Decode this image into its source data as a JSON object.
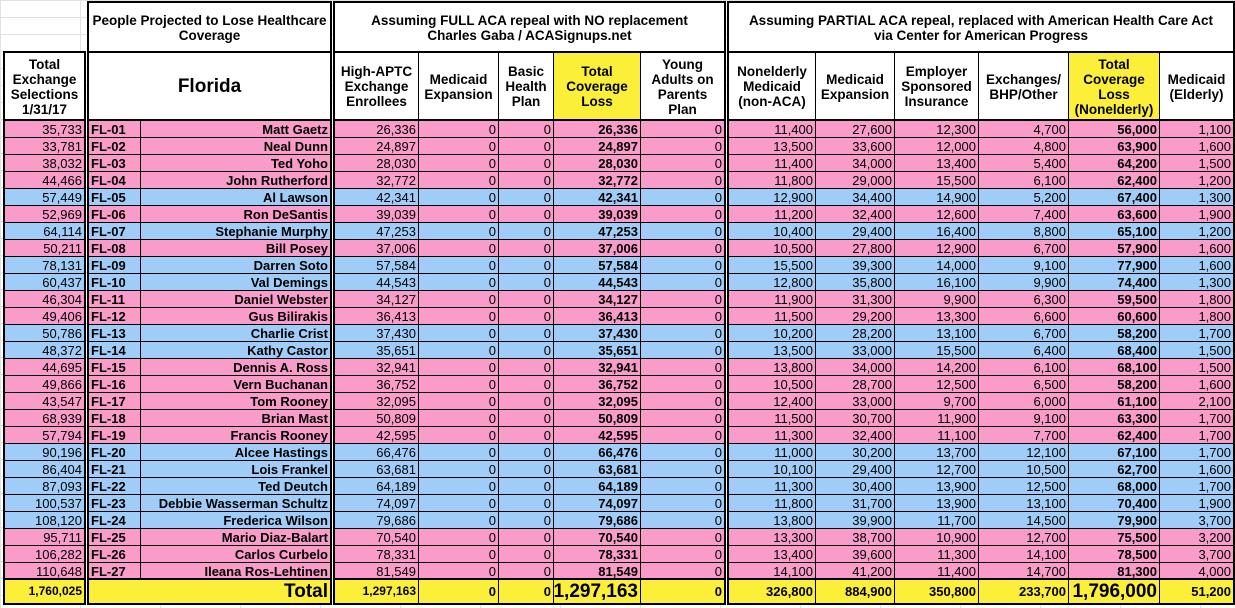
{
  "colors": {
    "republican_row": "#f99cc9",
    "democrat_row": "#9fcdf8",
    "highlight": "#fbef3a",
    "header": "#ffffff"
  },
  "headers": {
    "block_people": "People Projected to Lose Healthcare Coverage",
    "block_full": "Assuming FULL ACA repeal with NO replacement\nCharles Gaba / ACASignups.net",
    "block_partial": "Assuming PARTIAL ACA repeal, replaced with American Health Care Act\nvia Center for American Progress",
    "selections": "Total Exchange Selections 1/31/17",
    "state": "Florida",
    "full_cols": [
      "High-APTC Exchange Enrollees",
      "Medicaid Expansion",
      "Basic Health Plan",
      "Total Coverage Loss",
      "Young Adults on Parents Plan"
    ],
    "partial_cols": [
      "Nonelderly Medicaid (non-ACA)",
      "Medicaid Expansion",
      "Employer Sponsored Insurance",
      "Exchanges/ BHP/Other",
      "Total Coverage Loss (Nonelderly)",
      "Medicaid (Elderly)"
    ]
  },
  "rows": [
    {
      "sel": "35,733",
      "district": "FL-01",
      "name": "Matt Gaetz",
      "party": "R",
      "full": [
        "26,336",
        "0",
        "0",
        "26,336",
        "0"
      ],
      "partial": [
        "11,400",
        "27,600",
        "12,300",
        "4,700",
        "56,000",
        "1,100"
      ]
    },
    {
      "sel": "33,781",
      "district": "FL-02",
      "name": "Neal Dunn",
      "party": "R",
      "full": [
        "24,897",
        "0",
        "0",
        "24,897",
        "0"
      ],
      "partial": [
        "13,500",
        "33,600",
        "12,000",
        "4,800",
        "63,900",
        "1,600"
      ]
    },
    {
      "sel": "38,032",
      "district": "FL-03",
      "name": "Ted Yoho",
      "party": "R",
      "full": [
        "28,030",
        "0",
        "0",
        "28,030",
        "0"
      ],
      "partial": [
        "11,400",
        "34,000",
        "13,400",
        "5,400",
        "64,200",
        "1,500"
      ]
    },
    {
      "sel": "44,466",
      "district": "FL-04",
      "name": "John Rutherford",
      "party": "R",
      "full": [
        "32,772",
        "0",
        "0",
        "32,772",
        "0"
      ],
      "partial": [
        "11,800",
        "29,000",
        "15,500",
        "6,100",
        "62,400",
        "1,200"
      ]
    },
    {
      "sel": "57,449",
      "district": "FL-05",
      "name": "Al Lawson",
      "party": "D",
      "full": [
        "42,341",
        "0",
        "0",
        "42,341",
        "0"
      ],
      "partial": [
        "12,900",
        "34,400",
        "14,900",
        "5,200",
        "67,400",
        "1,300"
      ]
    },
    {
      "sel": "52,969",
      "district": "FL-06",
      "name": "Ron DeSantis",
      "party": "R",
      "full": [
        "39,039",
        "0",
        "0",
        "39,039",
        "0"
      ],
      "partial": [
        "11,200",
        "32,400",
        "12,600",
        "7,400",
        "63,600",
        "1,900"
      ]
    },
    {
      "sel": "64,114",
      "district": "FL-07",
      "name": "Stephanie Murphy",
      "party": "D",
      "full": [
        "47,253",
        "0",
        "0",
        "47,253",
        "0"
      ],
      "partial": [
        "10,400",
        "29,400",
        "16,400",
        "8,800",
        "65,100",
        "1,200"
      ]
    },
    {
      "sel": "50,211",
      "district": "FL-08",
      "name": "Bill Posey",
      "party": "R",
      "full": [
        "37,006",
        "0",
        "0",
        "37,006",
        "0"
      ],
      "partial": [
        "10,500",
        "27,800",
        "12,900",
        "6,700",
        "57,900",
        "1,600"
      ]
    },
    {
      "sel": "78,131",
      "district": "FL-09",
      "name": "Darren Soto",
      "party": "D",
      "full": [
        "57,584",
        "0",
        "0",
        "57,584",
        "0"
      ],
      "partial": [
        "15,500",
        "39,300",
        "14,000",
        "9,100",
        "77,900",
        "1,600"
      ]
    },
    {
      "sel": "60,437",
      "district": "FL-10",
      "name": "Val Demings",
      "party": "D",
      "full": [
        "44,543",
        "0",
        "0",
        "44,543",
        "0"
      ],
      "partial": [
        "12,800",
        "35,800",
        "16,100",
        "9,900",
        "74,400",
        "1,300"
      ]
    },
    {
      "sel": "46,304",
      "district": "FL-11",
      "name": "Daniel Webster",
      "party": "R",
      "full": [
        "34,127",
        "0",
        "0",
        "34,127",
        "0"
      ],
      "partial": [
        "11,900",
        "31,300",
        "9,900",
        "6,300",
        "59,500",
        "1,800"
      ]
    },
    {
      "sel": "49,406",
      "district": "FL-12",
      "name": "Gus Bilirakis",
      "party": "R",
      "full": [
        "36,413",
        "0",
        "0",
        "36,413",
        "0"
      ],
      "partial": [
        "11,500",
        "29,200",
        "13,300",
        "6,600",
        "60,600",
        "1,800"
      ]
    },
    {
      "sel": "50,786",
      "district": "FL-13",
      "name": "Charlie Crist",
      "party": "D",
      "full": [
        "37,430",
        "0",
        "0",
        "37,430",
        "0"
      ],
      "partial": [
        "10,200",
        "28,200",
        "13,100",
        "6,700",
        "58,200",
        "1,700"
      ]
    },
    {
      "sel": "48,372",
      "district": "FL-14",
      "name": "Kathy Castor",
      "party": "D",
      "full": [
        "35,651",
        "0",
        "0",
        "35,651",
        "0"
      ],
      "partial": [
        "13,500",
        "33,000",
        "15,500",
        "6,400",
        "68,400",
        "1,500"
      ]
    },
    {
      "sel": "44,695",
      "district": "FL-15",
      "name": "Dennis A. Ross",
      "party": "R",
      "full": [
        "32,941",
        "0",
        "0",
        "32,941",
        "0"
      ],
      "partial": [
        "13,800",
        "34,000",
        "14,200",
        "6,100",
        "68,100",
        "1,500"
      ]
    },
    {
      "sel": "49,866",
      "district": "FL-16",
      "name": "Vern Buchanan",
      "party": "R",
      "full": [
        "36,752",
        "0",
        "0",
        "36,752",
        "0"
      ],
      "partial": [
        "10,500",
        "28,700",
        "12,500",
        "6,500",
        "58,200",
        "1,600"
      ]
    },
    {
      "sel": "43,547",
      "district": "FL-17",
      "name": "Tom Rooney",
      "party": "R",
      "full": [
        "32,095",
        "0",
        "0",
        "32,095",
        "0"
      ],
      "partial": [
        "12,400",
        "33,000",
        "9,700",
        "6,000",
        "61,100",
        "2,100"
      ]
    },
    {
      "sel": "68,939",
      "district": "FL-18",
      "name": "Brian Mast",
      "party": "R",
      "full": [
        "50,809",
        "0",
        "0",
        "50,809",
        "0"
      ],
      "partial": [
        "11,500",
        "30,700",
        "11,900",
        "9,100",
        "63,300",
        "1,700"
      ]
    },
    {
      "sel": "57,794",
      "district": "FL-19",
      "name": "Francis Rooney",
      "party": "R",
      "full": [
        "42,595",
        "0",
        "0",
        "42,595",
        "0"
      ],
      "partial": [
        "11,300",
        "32,400",
        "11,100",
        "7,700",
        "62,400",
        "1,700"
      ]
    },
    {
      "sel": "90,196",
      "district": "FL-20",
      "name": "Alcee Hastings",
      "party": "D",
      "full": [
        "66,476",
        "0",
        "0",
        "66,476",
        "0"
      ],
      "partial": [
        "11,000",
        "30,200",
        "13,700",
        "12,100",
        "67,100",
        "1,700"
      ]
    },
    {
      "sel": "86,404",
      "district": "FL-21",
      "name": "Lois Frankel",
      "party": "D",
      "full": [
        "63,681",
        "0",
        "0",
        "63,681",
        "0"
      ],
      "partial": [
        "10,100",
        "29,400",
        "12,700",
        "10,500",
        "62,700",
        "1,600"
      ]
    },
    {
      "sel": "87,093",
      "district": "FL-22",
      "name": "Ted Deutch",
      "party": "D",
      "full": [
        "64,189",
        "0",
        "0",
        "64,189",
        "0"
      ],
      "partial": [
        "11,300",
        "30,400",
        "13,900",
        "12,500",
        "68,000",
        "1,700"
      ]
    },
    {
      "sel": "100,537",
      "district": "FL-23",
      "name": "Debbie Wasserman Schultz",
      "party": "D",
      "full": [
        "74,097",
        "0",
        "0",
        "74,097",
        "0"
      ],
      "partial": [
        "11,800",
        "31,700",
        "13,900",
        "13,100",
        "70,400",
        "1,900"
      ]
    },
    {
      "sel": "108,120",
      "district": "FL-24",
      "name": "Frederica Wilson",
      "party": "D",
      "full": [
        "79,686",
        "0",
        "0",
        "79,686",
        "0"
      ],
      "partial": [
        "13,800",
        "39,900",
        "11,700",
        "14,500",
        "79,900",
        "3,700"
      ]
    },
    {
      "sel": "95,711",
      "district": "FL-25",
      "name": "Mario Diaz-Balart",
      "party": "R",
      "full": [
        "70,540",
        "0",
        "0",
        "70,540",
        "0"
      ],
      "partial": [
        "13,300",
        "38,700",
        "10,900",
        "12,700",
        "75,500",
        "3,200"
      ]
    },
    {
      "sel": "106,282",
      "district": "FL-26",
      "name": "Carlos Curbelo",
      "party": "R",
      "full": [
        "78,331",
        "0",
        "0",
        "78,331",
        "0"
      ],
      "partial": [
        "13,400",
        "39,600",
        "11,300",
        "14,100",
        "78,500",
        "3,700"
      ]
    },
    {
      "sel": "110,648",
      "district": "FL-27",
      "name": "Ileana Ros-Lehtinen",
      "party": "R",
      "full": [
        "81,549",
        "0",
        "0",
        "81,549",
        "0"
      ],
      "partial": [
        "14,100",
        "41,200",
        "11,400",
        "14,700",
        "81,300",
        "4,000"
      ]
    }
  ],
  "totals": {
    "label": "Total",
    "sel": "1,760,025",
    "full": [
      "1,297,163",
      "0",
      "0",
      "1,297,163",
      "0"
    ],
    "partial": [
      "326,800",
      "884,900",
      "350,800",
      "233,700",
      "1,796,000",
      "51,200"
    ]
  }
}
